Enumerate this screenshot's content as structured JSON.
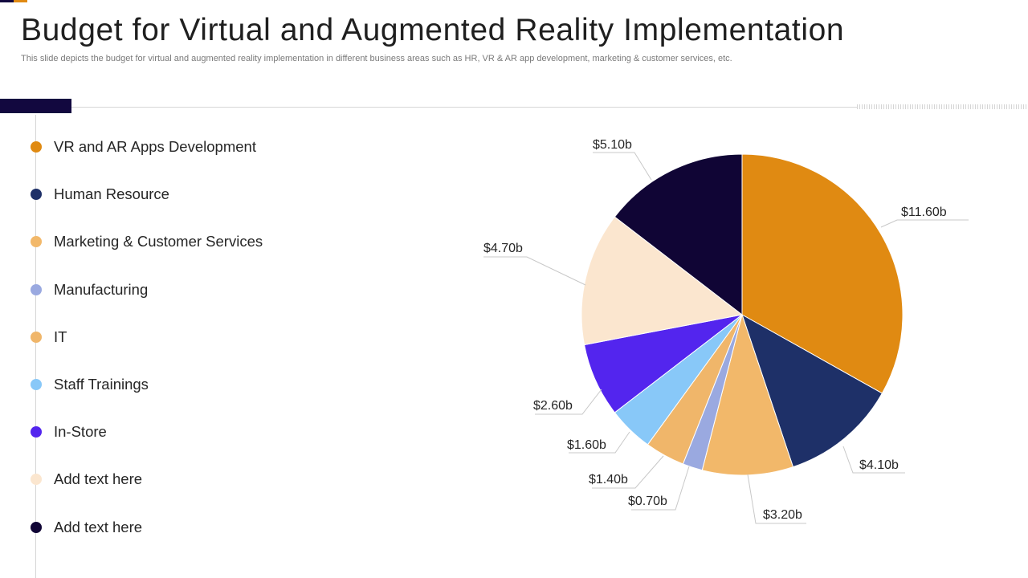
{
  "header": {
    "title": "Budget for Virtual and Augmented Reality Implementation",
    "subtitle": "This slide depicts the budget for virtual and augmented reality implementation in different business areas such as HR, VR & AR app development, marketing & customer services, etc."
  },
  "colors": {
    "accent_dark": "#12083f",
    "accent_orange": "#e08a12"
  },
  "chart_data": {
    "type": "pie",
    "start_angle_deg": 0,
    "direction": "clockwise",
    "legend_position": "left",
    "slices": [
      {
        "label": "VR and AR Apps Development",
        "value": 11.6,
        "display": "$11.60b",
        "color": "#e08a12"
      },
      {
        "label": "Human Resource",
        "value": 4.1,
        "display": "$4.10b",
        "color": "#1e3068"
      },
      {
        "label": "Marketing & Customer Services",
        "value": 3.2,
        "display": "$3.20b",
        "color": "#f2b86a"
      },
      {
        "label": "Manufacturing",
        "value": 0.7,
        "display": "$0.70b",
        "color": "#9aa9e0"
      },
      {
        "label": "IT",
        "value": 1.4,
        "display": "$1.40b",
        "color": "#f0b66a"
      },
      {
        "label": "Staff Trainings",
        "value": 1.6,
        "display": "$1.60b",
        "color": "#88c8f8"
      },
      {
        "label": "In-Store",
        "value": 2.6,
        "display": "$2.60b",
        "color": "#5325ee"
      },
      {
        "label": "Add text here",
        "value": 4.7,
        "display": "$4.70b",
        "color": "#fbe6cf"
      },
      {
        "label": "Add text here",
        "value": 5.1,
        "display": "$5.10b",
        "color": "#100535"
      }
    ]
  }
}
